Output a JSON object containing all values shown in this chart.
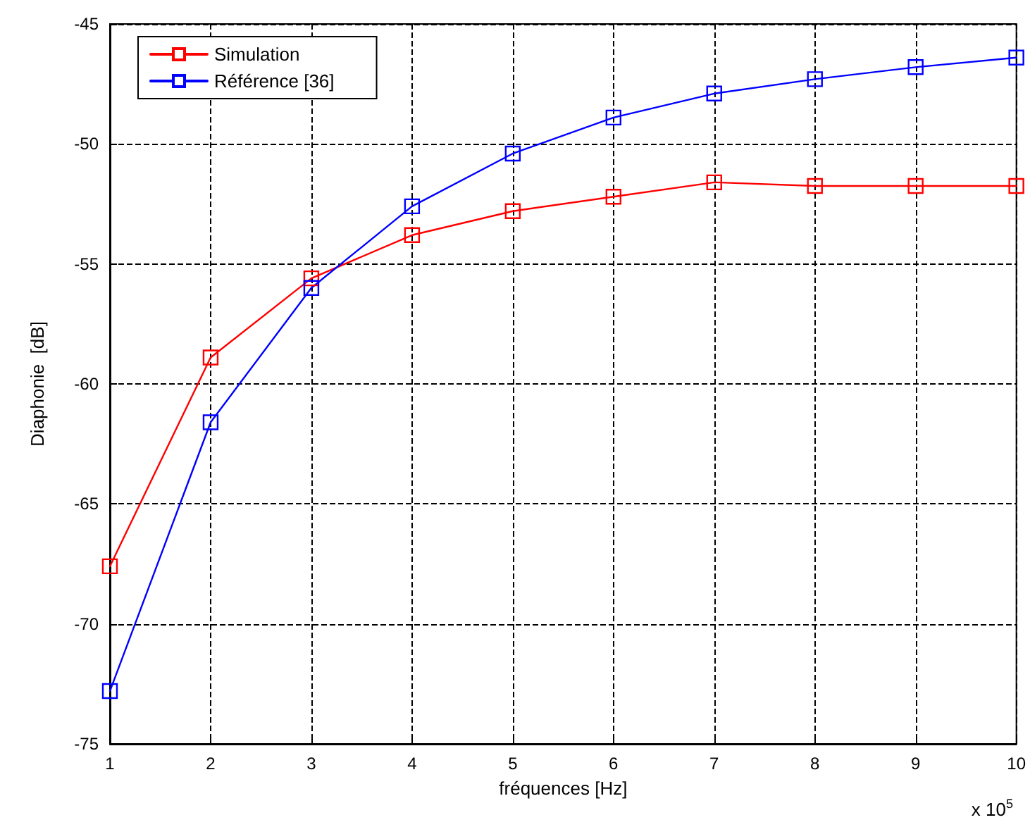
{
  "chart_data": {
    "type": "line",
    "xlabel": "fréquences [Hz]",
    "ylabel": "Diaphonie  [dB]",
    "annotations": [
      "x 10$^{5}$"
    ],
    "x": [
      1,
      2,
      3,
      4,
      5,
      6,
      7,
      8,
      9,
      10
    ],
    "xlim": [
      1,
      10
    ],
    "xticks": [
      1,
      2,
      3,
      4,
      5,
      6,
      7,
      8,
      9,
      10
    ],
    "ylim": [
      -75,
      -45
    ],
    "yticks": [
      -75,
      -70,
      -65,
      -60,
      -55,
      -50,
      -45
    ],
    "grid": true,
    "legend": "top left",
    "marker": "square",
    "line_style": "solid",
    "series": [
      {
        "name": "Simulation",
        "color": "#ff0000",
        "values": [
          -67.6,
          -58.9,
          -55.6,
          -53.8,
          -52.8,
          -52.2,
          -51.6,
          -51.75,
          -51.75,
          -51.75
        ]
      },
      {
        "name": "Référence [36]",
        "color": "#0000ff",
        "values": [
          -72.8,
          -61.6,
          -56.0,
          -52.6,
          -50.4,
          -48.9,
          -47.9,
          -47.3,
          -46.8,
          -46.4
        ]
      }
    ]
  }
}
